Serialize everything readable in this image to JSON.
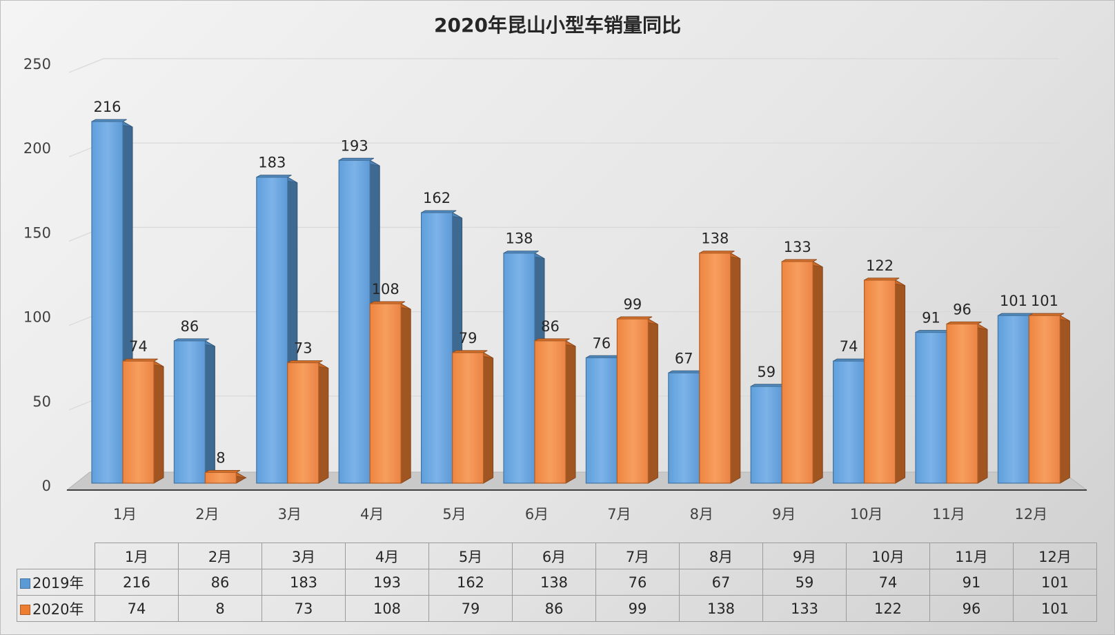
{
  "chart_data": {
    "type": "bar",
    "title": "2020年昆山小型车销量同比",
    "categories": [
      "1月",
      "2月",
      "3月",
      "4月",
      "5月",
      "6月",
      "7月",
      "8月",
      "9月",
      "10月",
      "11月",
      "12月"
    ],
    "series": [
      {
        "name": "2019年",
        "color": "#5b9bd5",
        "values": [
          216,
          86,
          183,
          193,
          162,
          138,
          76,
          67,
          59,
          74,
          91,
          101
        ]
      },
      {
        "name": "2020年",
        "color": "#ed7d31",
        "values": [
          74,
          8,
          73,
          108,
          79,
          86,
          99,
          138,
          133,
          122,
          96,
          101
        ]
      }
    ],
    "ylim": [
      0,
      250
    ],
    "yticks": [
      0,
      50,
      100,
      150,
      200,
      250
    ],
    "xlabel": "",
    "ylabel": "",
    "grid": true,
    "legend": "data-table"
  }
}
